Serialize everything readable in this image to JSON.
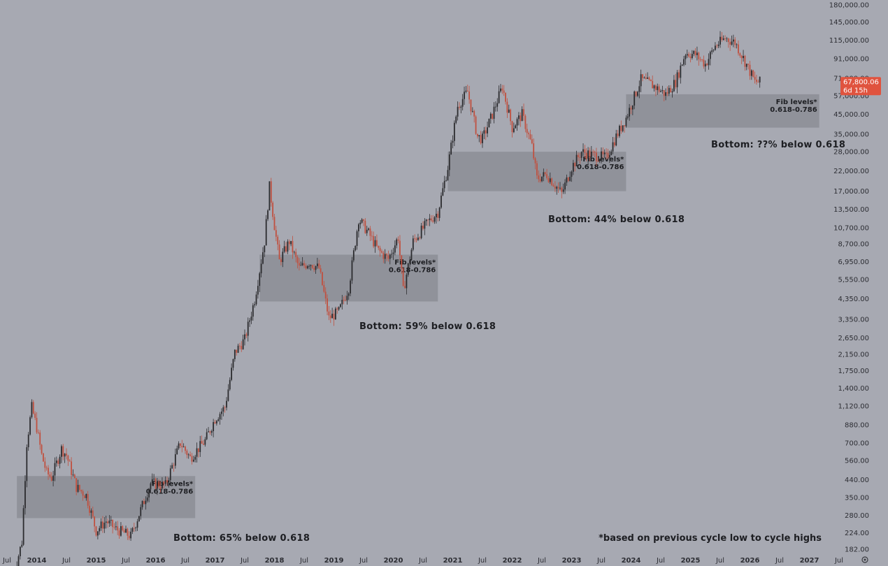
{
  "chart_data": {
    "type": "candlestick",
    "scale": "log",
    "grid": false,
    "y_ticks": [
      182,
      224,
      280,
      350,
      440,
      560,
      700,
      880,
      1120,
      1400,
      1750,
      2150,
      2650,
      3350,
      4350,
      5550,
      6950,
      8700,
      10700,
      13500,
      17000,
      22000,
      28000,
      35000,
      45000,
      57000,
      71000,
      91000,
      115000,
      145000,
      180000
    ],
    "y_tick_labels": [
      "182.00",
      "224.00",
      "280.00",
      "350.00",
      "440.00",
      "560.00",
      "700.00",
      "880.00",
      "1,120.00",
      "1,400.00",
      "1,750.00",
      "2,150.00",
      "2,650.00",
      "3,350.00",
      "4,350.00",
      "5,550.00",
      "6,950.00",
      "8,700.00",
      "10,700.00",
      "13,500.00",
      "17,000.00",
      "22,000.00",
      "28,000.00",
      "35,000.00",
      "45,000.00",
      "57,000.00",
      "71,000.00",
      "91,000.00",
      "115,000.00",
      "145,000.00",
      "180,000.00"
    ],
    "x_ticks": [
      {
        "label": "Jul",
        "year": false
      },
      {
        "label": "2014",
        "year": true
      },
      {
        "label": "Jul",
        "year": false
      },
      {
        "label": "2015",
        "year": true
      },
      {
        "label": "Jul",
        "year": false
      },
      {
        "label": "2016",
        "year": true
      },
      {
        "label": "Jul",
        "year": false
      },
      {
        "label": "2017",
        "year": true
      },
      {
        "label": "Jul",
        "year": false
      },
      {
        "label": "2018",
        "year": true
      },
      {
        "label": "Jul",
        "year": false
      },
      {
        "label": "2019",
        "year": true
      },
      {
        "label": "Jul",
        "year": false
      },
      {
        "label": "2020",
        "year": true
      },
      {
        "label": "Jul",
        "year": false
      },
      {
        "label": "2021",
        "year": true
      },
      {
        "label": "Jul",
        "year": false
      },
      {
        "label": "2022",
        "year": true
      },
      {
        "label": "Jul",
        "year": false
      },
      {
        "label": "2023",
        "year": true
      },
      {
        "label": "Jul",
        "year": false
      },
      {
        "label": "2024",
        "year": true
      },
      {
        "label": "Jul",
        "year": false
      },
      {
        "label": "2025",
        "year": true
      },
      {
        "label": "Jul",
        "year": false
      },
      {
        "label": "2026",
        "year": true
      },
      {
        "label": "Jul",
        "year": false
      },
      {
        "label": "2027",
        "year": true
      },
      {
        "label": "Jul",
        "year": false
      }
    ],
    "price_series": [
      {
        "t": "2013-08",
        "v": 120
      },
      {
        "t": "2013-10",
        "v": 200
      },
      {
        "t": "2013-11",
        "v": 700
      },
      {
        "t": "2013-12",
        "v": 1100
      },
      {
        "t": "2014-01",
        "v": 850
      },
      {
        "t": "2014-02",
        "v": 600
      },
      {
        "t": "2014-03",
        "v": 480
      },
      {
        "t": "2014-04",
        "v": 450
      },
      {
        "t": "2014-06",
        "v": 650
      },
      {
        "t": "2014-07",
        "v": 600
      },
      {
        "t": "2014-09",
        "v": 400
      },
      {
        "t": "2014-11",
        "v": 360
      },
      {
        "t": "2015-01",
        "v": 230
      },
      {
        "t": "2015-03",
        "v": 260
      },
      {
        "t": "2015-05",
        "v": 235
      },
      {
        "t": "2015-08",
        "v": 215
      },
      {
        "t": "2015-10",
        "v": 300
      },
      {
        "t": "2015-12",
        "v": 420
      },
      {
        "t": "2016-03",
        "v": 410
      },
      {
        "t": "2016-06",
        "v": 700
      },
      {
        "t": "2016-08",
        "v": 580
      },
      {
        "t": "2016-11",
        "v": 720
      },
      {
        "t": "2017-01",
        "v": 950
      },
      {
        "t": "2017-03",
        "v": 1100
      },
      {
        "t": "2017-05",
        "v": 2200
      },
      {
        "t": "2017-07",
        "v": 2600
      },
      {
        "t": "2017-09",
        "v": 4300
      },
      {
        "t": "2017-11",
        "v": 9000
      },
      {
        "t": "2017-12",
        "v": 18000
      },
      {
        "t": "2018-01",
        "v": 11000
      },
      {
        "t": "2018-02",
        "v": 7000
      },
      {
        "t": "2018-04",
        "v": 9000
      },
      {
        "t": "2018-06",
        "v": 6400
      },
      {
        "t": "2018-08",
        "v": 6900
      },
      {
        "t": "2018-10",
        "v": 6400
      },
      {
        "t": "2018-12",
        "v": 3400
      },
      {
        "t": "2019-02",
        "v": 3700
      },
      {
        "t": "2019-04",
        "v": 5000
      },
      {
        "t": "2019-06",
        "v": 12000
      },
      {
        "t": "2019-08",
        "v": 10000
      },
      {
        "t": "2019-10",
        "v": 8000
      },
      {
        "t": "2019-12",
        "v": 7200
      },
      {
        "t": "2020-02",
        "v": 9500
      },
      {
        "t": "2020-03",
        "v": 4800
      },
      {
        "t": "2020-05",
        "v": 9000
      },
      {
        "t": "2020-08",
        "v": 11500
      },
      {
        "t": "2020-10",
        "v": 13000
      },
      {
        "t": "2020-12",
        "v": 23000
      },
      {
        "t": "2021-01",
        "v": 34000
      },
      {
        "t": "2021-02",
        "v": 50000
      },
      {
        "t": "2021-04",
        "v": 60000
      },
      {
        "t": "2021-06",
        "v": 34000
      },
      {
        "t": "2021-07",
        "v": 33000
      },
      {
        "t": "2021-09",
        "v": 45000
      },
      {
        "t": "2021-11",
        "v": 64000
      },
      {
        "t": "2022-01",
        "v": 38000
      },
      {
        "t": "2022-03",
        "v": 45000
      },
      {
        "t": "2022-05",
        "v": 30000
      },
      {
        "t": "2022-06",
        "v": 20000
      },
      {
        "t": "2022-08",
        "v": 21000
      },
      {
        "t": "2022-11",
        "v": 16500
      },
      {
        "t": "2023-01",
        "v": 23000
      },
      {
        "t": "2023-03",
        "v": 28000
      },
      {
        "t": "2023-05",
        "v": 27000
      },
      {
        "t": "2023-08",
        "v": 26000
      },
      {
        "t": "2023-10",
        "v": 34000
      },
      {
        "t": "2023-12",
        "v": 43000
      },
      {
        "t": "2024-03",
        "v": 70000
      },
      {
        "t": "2024-05",
        "v": 66000
      },
      {
        "t": "2024-08",
        "v": 58000
      },
      {
        "t": "2024-10",
        "v": 68000
      },
      {
        "t": "2024-12",
        "v": 98000
      },
      {
        "t": "2025-02",
        "v": 96000
      },
      {
        "t": "2025-04",
        "v": 85000
      },
      {
        "t": "2025-06",
        "v": 107000
      },
      {
        "t": "2025-08",
        "v": 118000
      },
      {
        "t": "2025-10",
        "v": 112000
      },
      {
        "t": "2025-12",
        "v": 88000
      },
      {
        "t": "2026-02",
        "v": 68000
      },
      {
        "t": "2026-03",
        "v": 67800
      }
    ],
    "fib_zones": [
      {
        "label_line1": "Fib levels*",
        "label_line2": "0.618-0.786",
        "start": "2013-09",
        "end": "2016-09",
        "low": 270,
        "high": 460
      },
      {
        "label_line1": "Fib levels*",
        "label_line2": "0.618-0.786",
        "start": "2017-10",
        "end": "2020-10",
        "low": 4200,
        "high": 7600
      },
      {
        "label_line1": "Fib levels*",
        "label_line2": "0.618-0.786",
        "start": "2020-12",
        "end": "2023-12",
        "low": 17000,
        "high": 28000
      },
      {
        "label_line1": "Fib levels*",
        "label_line2": "0.618-0.786",
        "start": "2023-12",
        "end": "2027-03",
        "low": 38000,
        "high": 58000
      }
    ],
    "annotations": [
      "Bottom: 65% below 0.618",
      "Bottom: 59% below 0.618",
      "Bottom: 44% below 0.618",
      "Bottom: ??% below 0.618"
    ],
    "footnote": "*based on previous cycle low to cycle highs",
    "current_price": {
      "value": 67800.06,
      "label": "67,800.06",
      "countdown": "6d 15h",
      "color": "#e0533e"
    },
    "colors": {
      "background": "#a7a9b2",
      "zone": "#8c8e95",
      "up": "#2b2b2e",
      "down": "#c0503f"
    }
  }
}
